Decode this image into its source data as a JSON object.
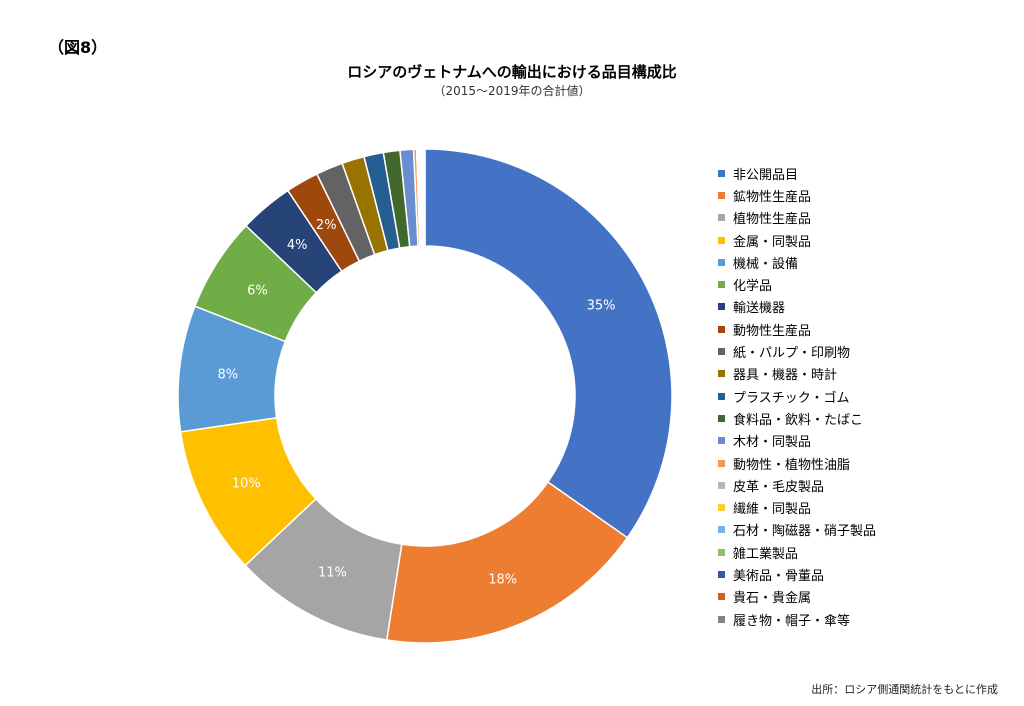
{
  "figure_label": "（図8）",
  "source": "出所：ロシア側通関統計をもとに作成",
  "chart_data": {
    "type": "pie",
    "donut": true,
    "title": "ロシアのヴェトナムへの輸出における品目構成比",
    "subtitle": "（2015～2019年の合計値）",
    "legend_position": "right",
    "categories": [
      "非公開品目",
      "鉱物性生産品",
      "植物性生産品",
      "金属・同製品",
      "機械・設備",
      "化学品",
      "輸送機器",
      "動物性生産品",
      "紙・パルプ・印刷物",
      "器具・機器・時計",
      "プラスチック・ゴム",
      "食料品・飲料・たばこ",
      "木材・同製品",
      "動物性・植物性油脂",
      "皮革・毛皮製品",
      "繊維・同製品",
      "石材・陶磁器・硝子製品",
      "雑工業製品",
      "美術品・骨董品",
      "貴石・貴金属",
      "履き物・帽子・傘等"
    ],
    "values": [
      35.4,
      18.1,
      10.7,
      9.9,
      8.4,
      6.3,
      3.6,
      2.2,
      1.8,
      1.5,
      1.3,
      1.1,
      0.9,
      0.2,
      0.1,
      0.1,
      0.1,
      0.1,
      0.05,
      0.05,
      0.05
    ],
    "data_labels": [
      "35%",
      "18%",
      "11%",
      "10%",
      "8%",
      "6%",
      "4%",
      "2%",
      "",
      "",
      "",
      "",
      "",
      "",
      "",
      "",
      "",
      "",
      "",
      "",
      ""
    ],
    "colors": [
      "#4472c4",
      "#ed7d31",
      "#a5a5a5",
      "#ffc000",
      "#5b9bd5",
      "#70ad47",
      "#264478",
      "#9e480e",
      "#636363",
      "#997300",
      "#255e91",
      "#43682b",
      "#698ed0",
      "#f1975a",
      "#b7b7b7",
      "#ffcd33",
      "#7cafdd",
      "#8cc168",
      "#335aa1",
      "#d26012",
      "#848484"
    ]
  }
}
